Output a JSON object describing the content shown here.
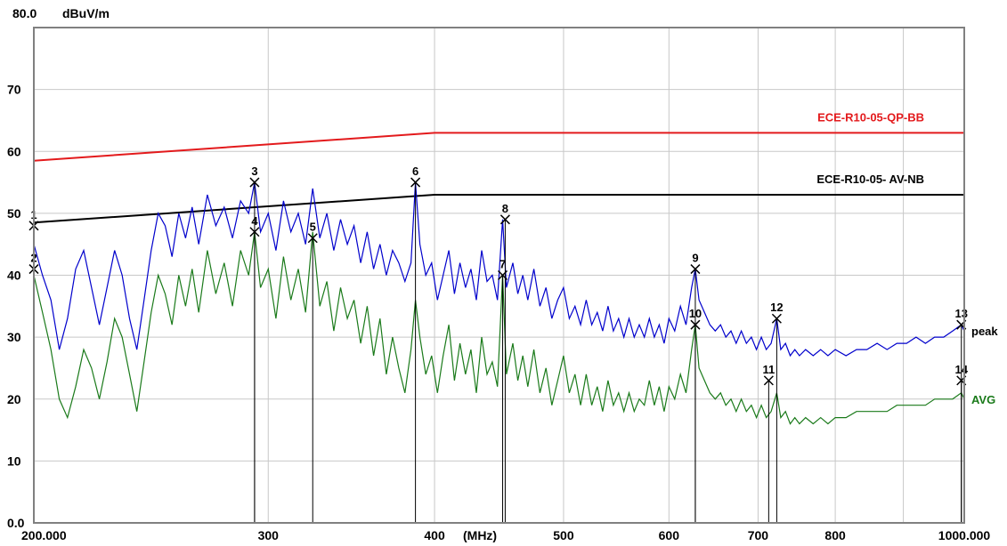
{
  "chart_data": {
    "type": "line",
    "x_scale": "log",
    "xlim": [
      200,
      1000
    ],
    "ylim": [
      0,
      80
    ],
    "grid": true,
    "y_max_label": "80.0",
    "y_unit": "dBuV/m",
    "y_tick_labels": [
      "0.0",
      "10",
      "20",
      "30",
      "40",
      "50",
      "60",
      "70"
    ],
    "y_ticks": [
      0,
      10,
      20,
      30,
      40,
      50,
      60,
      70
    ],
    "x_ticks": [
      {
        "value": 200,
        "label": "200.000"
      },
      {
        "value": 300,
        "label": "300"
      },
      {
        "value": 400,
        "label": "400"
      },
      {
        "value": 500,
        "label": "500"
      },
      {
        "value": 600,
        "label": "600"
      },
      {
        "value": 700,
        "label": "700"
      },
      {
        "value": 800,
        "label": "800"
      },
      {
        "value": 1000,
        "label": "1000.000"
      }
    ],
    "x_unit": "(MHz)",
    "limit_lines": [
      {
        "name": "ECE-R10-05-QP-BB",
        "color": "#e31a1c",
        "points": [
          [
            200,
            58.5
          ],
          [
            400,
            63
          ],
          [
            1000,
            63
          ]
        ]
      },
      {
        "name": "ECE-R10-05- AV-NB",
        "color": "#000000",
        "points": [
          [
            200,
            48.5
          ],
          [
            400,
            53
          ],
          [
            1000,
            53
          ]
        ]
      }
    ],
    "series": [
      {
        "name": "peak",
        "color": "#0000cc",
        "points": [
          [
            200,
            45
          ],
          [
            203,
            40
          ],
          [
            206,
            36
          ],
          [
            209,
            28
          ],
          [
            212,
            33
          ],
          [
            215,
            41
          ],
          [
            218,
            44
          ],
          [
            221,
            38
          ],
          [
            224,
            32
          ],
          [
            227,
            38
          ],
          [
            230,
            44
          ],
          [
            233,
            40
          ],
          [
            236,
            33
          ],
          [
            239,
            28
          ],
          [
            242,
            36
          ],
          [
            245,
            44
          ],
          [
            248,
            50
          ],
          [
            251,
            48
          ],
          [
            254,
            43
          ],
          [
            257,
            50
          ],
          [
            260,
            46
          ],
          [
            263,
            51
          ],
          [
            266,
            45
          ],
          [
            270,
            53
          ],
          [
            274,
            48
          ],
          [
            278,
            51
          ],
          [
            282,
            46
          ],
          [
            286,
            52
          ],
          [
            290,
            50
          ],
          [
            293,
            55
          ],
          [
            296,
            47
          ],
          [
            300,
            50
          ],
          [
            304,
            44
          ],
          [
            308,
            52
          ],
          [
            312,
            47
          ],
          [
            316,
            50
          ],
          [
            320,
            45
          ],
          [
            324,
            54
          ],
          [
            328,
            46
          ],
          [
            332,
            50
          ],
          [
            336,
            44
          ],
          [
            340,
            49
          ],
          [
            344,
            45
          ],
          [
            348,
            48
          ],
          [
            352,
            42
          ],
          [
            356,
            47
          ],
          [
            360,
            41
          ],
          [
            364,
            45
          ],
          [
            368,
            40
          ],
          [
            372,
            44
          ],
          [
            376,
            42
          ],
          [
            380,
            39
          ],
          [
            384,
            42
          ],
          [
            387,
            55
          ],
          [
            390,
            45
          ],
          [
            394,
            40
          ],
          [
            398,
            42
          ],
          [
            402,
            36
          ],
          [
            406,
            40
          ],
          [
            410,
            44
          ],
          [
            414,
            37
          ],
          [
            418,
            42
          ],
          [
            422,
            38
          ],
          [
            426,
            41
          ],
          [
            430,
            36
          ],
          [
            434,
            44
          ],
          [
            438,
            39
          ],
          [
            442,
            40
          ],
          [
            446,
            36
          ],
          [
            450,
            49
          ],
          [
            453,
            38
          ],
          [
            458,
            42
          ],
          [
            462,
            37
          ],
          [
            466,
            40
          ],
          [
            470,
            36
          ],
          [
            475,
            41
          ],
          [
            480,
            35
          ],
          [
            485,
            38
          ],
          [
            490,
            33
          ],
          [
            495,
            36
          ],
          [
            500,
            38
          ],
          [
            505,
            33
          ],
          [
            510,
            35
          ],
          [
            515,
            32
          ],
          [
            520,
            36
          ],
          [
            525,
            32
          ],
          [
            530,
            34
          ],
          [
            535,
            31
          ],
          [
            540,
            35
          ],
          [
            545,
            31
          ],
          [
            550,
            33
          ],
          [
            555,
            30
          ],
          [
            560,
            33
          ],
          [
            565,
            30
          ],
          [
            570,
            32
          ],
          [
            575,
            30
          ],
          [
            580,
            33
          ],
          [
            585,
            30
          ],
          [
            590,
            32
          ],
          [
            595,
            29
          ],
          [
            600,
            33
          ],
          [
            606,
            31
          ],
          [
            612,
            35
          ],
          [
            618,
            32
          ],
          [
            624,
            38
          ],
          [
            628,
            41
          ],
          [
            632,
            36
          ],
          [
            638,
            34
          ],
          [
            644,
            32
          ],
          [
            650,
            31
          ],
          [
            656,
            32
          ],
          [
            662,
            30
          ],
          [
            668,
            31
          ],
          [
            674,
            29
          ],
          [
            680,
            31
          ],
          [
            686,
            29
          ],
          [
            692,
            30
          ],
          [
            698,
            28
          ],
          [
            704,
            30
          ],
          [
            710,
            28
          ],
          [
            716,
            29
          ],
          [
            723,
            33
          ],
          [
            728,
            28
          ],
          [
            734,
            29
          ],
          [
            740,
            27
          ],
          [
            746,
            28
          ],
          [
            752,
            27
          ],
          [
            760,
            28
          ],
          [
            770,
            27
          ],
          [
            780,
            28
          ],
          [
            790,
            27
          ],
          [
            800,
            28
          ],
          [
            815,
            27
          ],
          [
            830,
            28
          ],
          [
            845,
            28
          ],
          [
            860,
            29
          ],
          [
            875,
            28
          ],
          [
            890,
            29
          ],
          [
            905,
            29
          ],
          [
            920,
            30
          ],
          [
            935,
            29
          ],
          [
            950,
            30
          ],
          [
            965,
            30
          ],
          [
            980,
            31
          ],
          [
            995,
            32
          ],
          [
            1000,
            31
          ]
        ]
      },
      {
        "name": "AVG",
        "color": "#1a7a1a",
        "points": [
          [
            200,
            40
          ],
          [
            203,
            34
          ],
          [
            206,
            28
          ],
          [
            209,
            20
          ],
          [
            212,
            17
          ],
          [
            215,
            22
          ],
          [
            218,
            28
          ],
          [
            221,
            25
          ],
          [
            224,
            20
          ],
          [
            227,
            26
          ],
          [
            230,
            33
          ],
          [
            233,
            30
          ],
          [
            236,
            24
          ],
          [
            239,
            18
          ],
          [
            242,
            26
          ],
          [
            245,
            34
          ],
          [
            248,
            40
          ],
          [
            251,
            37
          ],
          [
            254,
            32
          ],
          [
            257,
            40
          ],
          [
            260,
            35
          ],
          [
            263,
            41
          ],
          [
            266,
            34
          ],
          [
            270,
            44
          ],
          [
            274,
            37
          ],
          [
            278,
            42
          ],
          [
            282,
            35
          ],
          [
            286,
            44
          ],
          [
            290,
            40
          ],
          [
            293,
            47
          ],
          [
            296,
            38
          ],
          [
            300,
            41
          ],
          [
            304,
            33
          ],
          [
            308,
            43
          ],
          [
            312,
            36
          ],
          [
            316,
            41
          ],
          [
            320,
            34
          ],
          [
            324,
            47
          ],
          [
            328,
            35
          ],
          [
            332,
            39
          ],
          [
            336,
            31
          ],
          [
            340,
            38
          ],
          [
            344,
            33
          ],
          [
            348,
            36
          ],
          [
            352,
            29
          ],
          [
            356,
            35
          ],
          [
            360,
            27
          ],
          [
            364,
            33
          ],
          [
            368,
            24
          ],
          [
            372,
            30
          ],
          [
            376,
            25
          ],
          [
            380,
            21
          ],
          [
            384,
            28
          ],
          [
            387,
            36
          ],
          [
            390,
            30
          ],
          [
            394,
            24
          ],
          [
            398,
            27
          ],
          [
            402,
            21
          ],
          [
            406,
            27
          ],
          [
            410,
            32
          ],
          [
            414,
            23
          ],
          [
            418,
            29
          ],
          [
            422,
            24
          ],
          [
            426,
            28
          ],
          [
            430,
            21
          ],
          [
            434,
            30
          ],
          [
            438,
            24
          ],
          [
            442,
            26
          ],
          [
            446,
            22
          ],
          [
            450,
            40
          ],
          [
            453,
            24
          ],
          [
            458,
            29
          ],
          [
            462,
            23
          ],
          [
            466,
            27
          ],
          [
            470,
            22
          ],
          [
            475,
            28
          ],
          [
            480,
            21
          ],
          [
            485,
            25
          ],
          [
            490,
            19
          ],
          [
            495,
            23
          ],
          [
            500,
            27
          ],
          [
            505,
            21
          ],
          [
            510,
            24
          ],
          [
            515,
            19
          ],
          [
            520,
            24
          ],
          [
            525,
            19
          ],
          [
            530,
            22
          ],
          [
            535,
            18
          ],
          [
            540,
            23
          ],
          [
            545,
            19
          ],
          [
            550,
            21
          ],
          [
            555,
            18
          ],
          [
            560,
            21
          ],
          [
            565,
            18
          ],
          [
            570,
            20
          ],
          [
            575,
            19
          ],
          [
            580,
            23
          ],
          [
            585,
            19
          ],
          [
            590,
            22
          ],
          [
            595,
            18
          ],
          [
            600,
            22
          ],
          [
            606,
            20
          ],
          [
            612,
            24
          ],
          [
            618,
            21
          ],
          [
            624,
            28
          ],
          [
            628,
            32
          ],
          [
            632,
            25
          ],
          [
            638,
            23
          ],
          [
            644,
            21
          ],
          [
            650,
            20
          ],
          [
            656,
            21
          ],
          [
            662,
            19
          ],
          [
            668,
            20
          ],
          [
            674,
            18
          ],
          [
            680,
            20
          ],
          [
            686,
            18
          ],
          [
            692,
            19
          ],
          [
            698,
            17
          ],
          [
            704,
            19
          ],
          [
            710,
            17
          ],
          [
            716,
            18
          ],
          [
            723,
            21
          ],
          [
            728,
            17
          ],
          [
            734,
            18
          ],
          [
            740,
            16
          ],
          [
            746,
            17
          ],
          [
            752,
            16
          ],
          [
            760,
            17
          ],
          [
            770,
            16
          ],
          [
            780,
            17
          ],
          [
            790,
            16
          ],
          [
            800,
            17
          ],
          [
            815,
            17
          ],
          [
            830,
            18
          ],
          [
            845,
            18
          ],
          [
            860,
            18
          ],
          [
            875,
            18
          ],
          [
            890,
            19
          ],
          [
            905,
            19
          ],
          [
            920,
            19
          ],
          [
            935,
            19
          ],
          [
            950,
            20
          ],
          [
            965,
            20
          ],
          [
            980,
            20
          ],
          [
            995,
            21
          ],
          [
            1000,
            20
          ]
        ]
      }
    ],
    "markers": [
      {
        "label": "1",
        "x": 200,
        "y": 48
      },
      {
        "label": "2",
        "x": 200,
        "y": 41
      },
      {
        "label": "3",
        "x": 293,
        "y": 55
      },
      {
        "label": "4",
        "x": 293,
        "y": 47
      },
      {
        "label": "5",
        "x": 324,
        "y": 46
      },
      {
        "label": "6",
        "x": 387,
        "y": 55
      },
      {
        "label": "7",
        "x": 450,
        "y": 40
      },
      {
        "label": "8",
        "x": 452,
        "y": 49
      },
      {
        "label": "9",
        "x": 628,
        "y": 41
      },
      {
        "label": "10",
        "x": 628,
        "y": 32
      },
      {
        "label": "11",
        "x": 713,
        "y": 23
      },
      {
        "label": "12",
        "x": 723,
        "y": 33
      },
      {
        "label": "13",
        "x": 995,
        "y": 32
      },
      {
        "label": "14",
        "x": 995,
        "y": 23
      }
    ]
  }
}
